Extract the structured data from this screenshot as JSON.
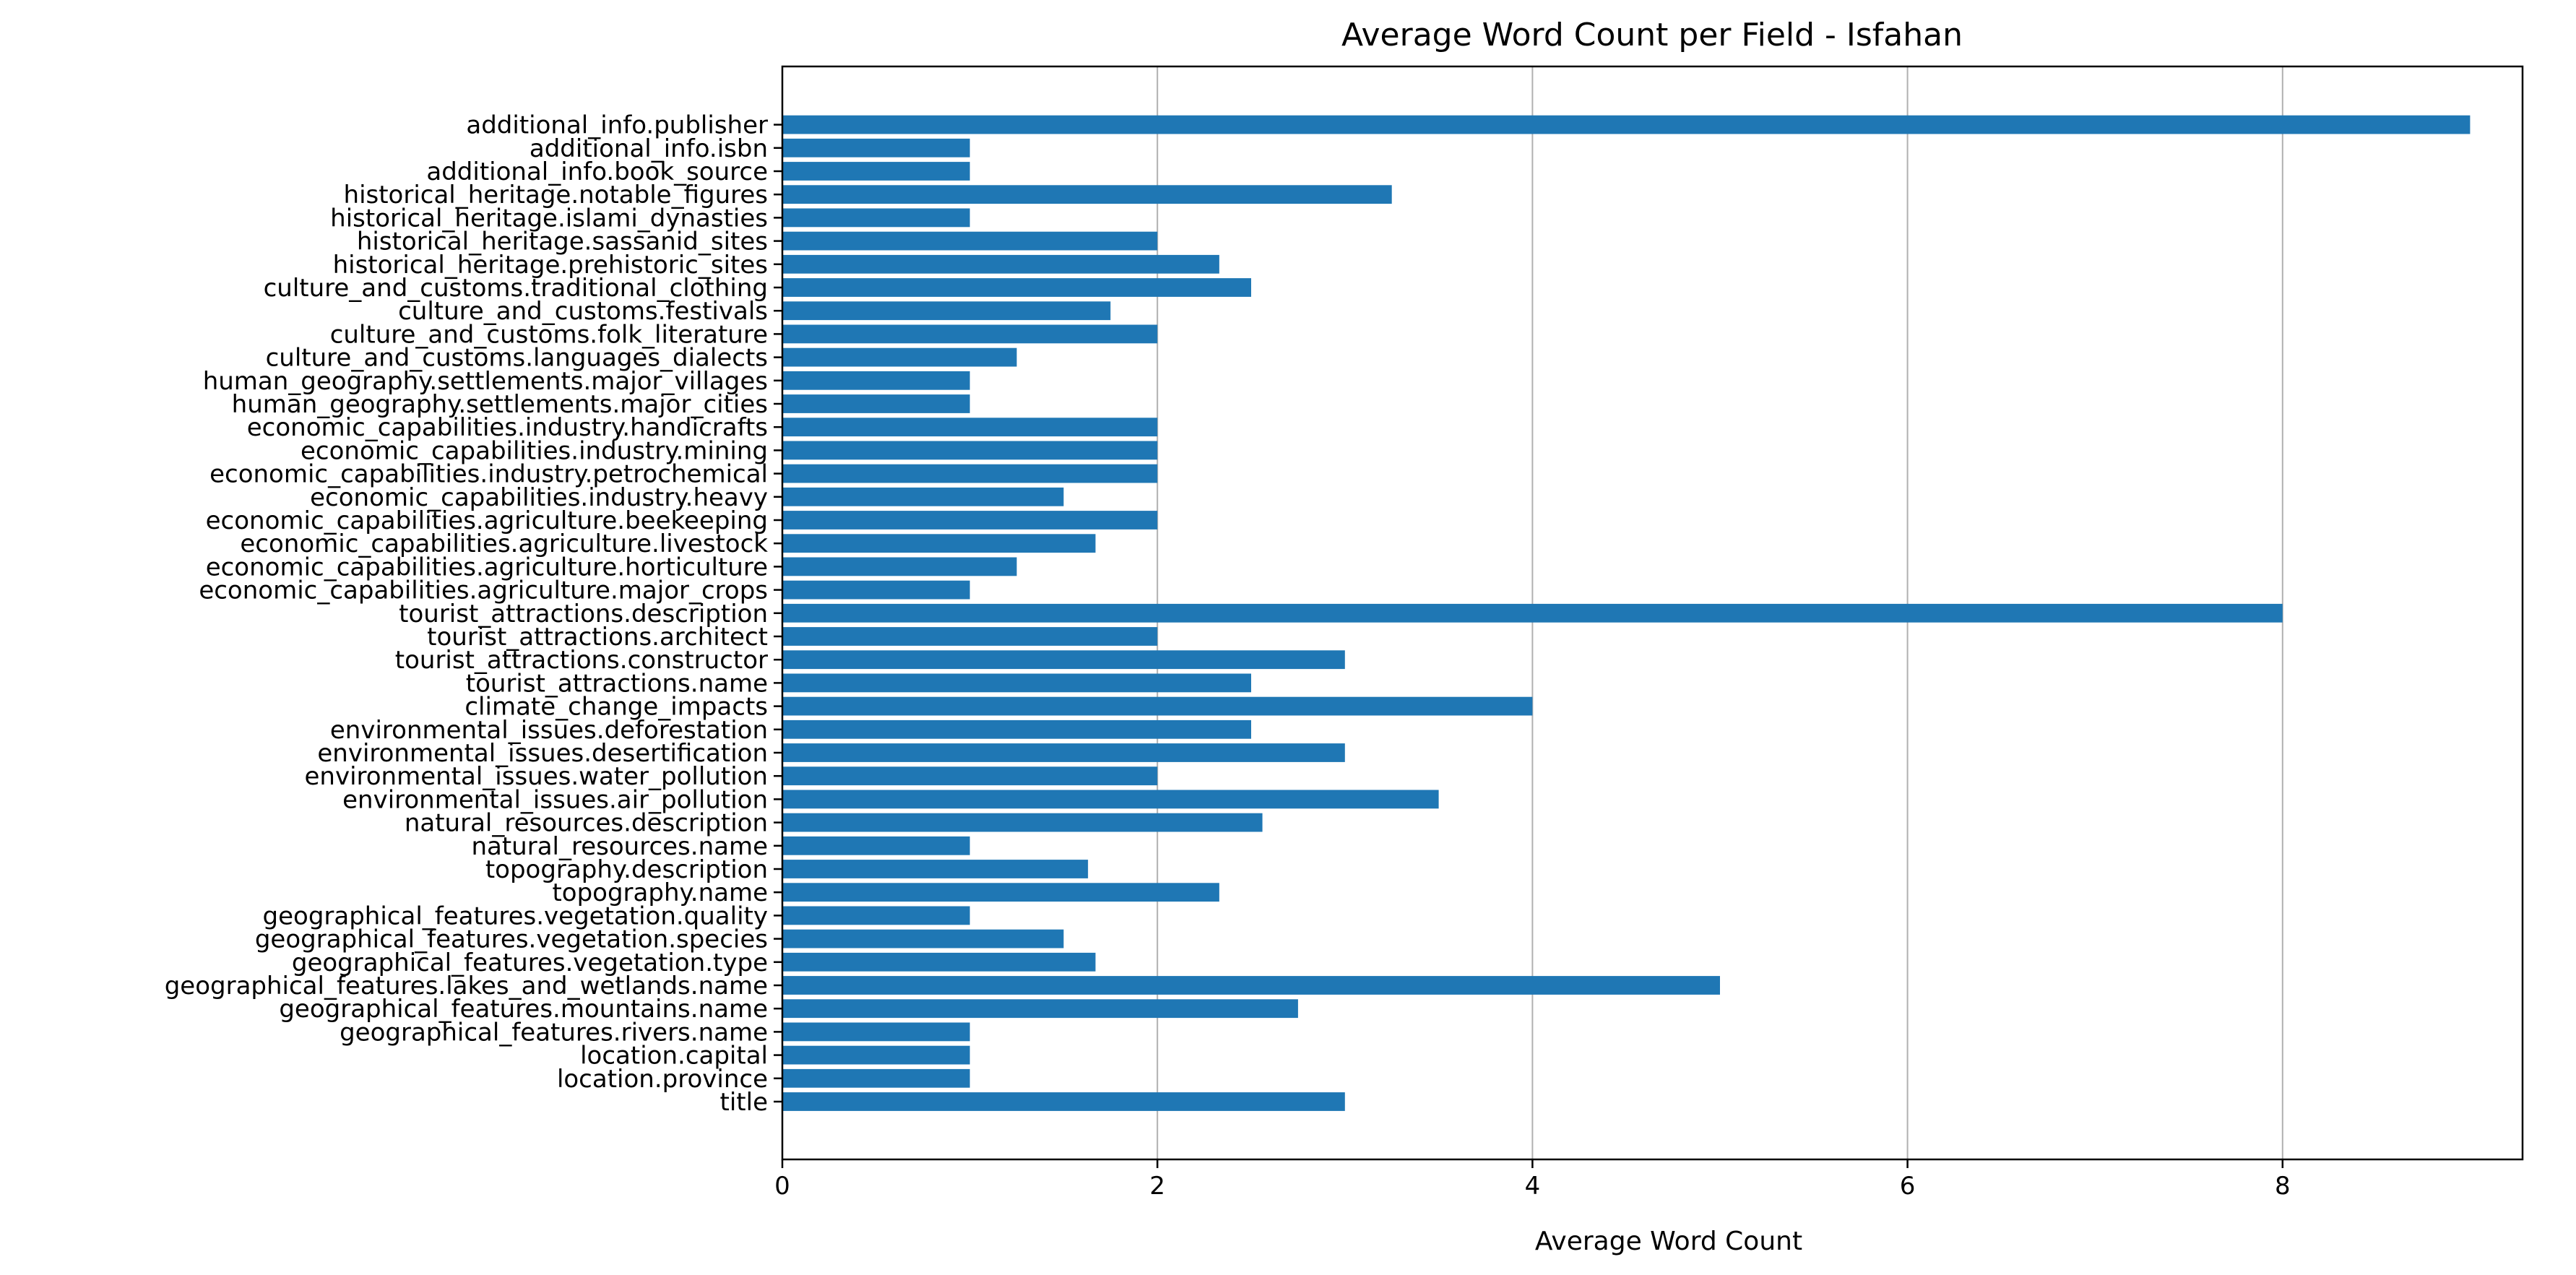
{
  "chart_data": {
    "type": "bar",
    "orientation": "horizontal",
    "title": "Average Word Count per Field - Isfahan",
    "xlabel": "Average Word Count",
    "ylabel": "",
    "xlim": [
      0,
      9.45
    ],
    "xticks": [
      0,
      2,
      4,
      6,
      8
    ],
    "grid": "x",
    "bar_color": "#1f77b4",
    "categories": [
      "title",
      "location.province",
      "location.capital",
      "geographical_features.rivers.name",
      "geographical_features.mountains.name",
      "geographical_features.lakes_and_wetlands.name",
      "geographical_features.vegetation.type",
      "geographical_features.vegetation.species",
      "geographical_features.vegetation.quality",
      "topography.name",
      "topography.description",
      "natural_resources.name",
      "natural_resources.description",
      "environmental_issues.air_pollution",
      "environmental_issues.water_pollution",
      "environmental_issues.desertification",
      "environmental_issues.deforestation",
      "climate_change_impacts",
      "tourist_attractions.name",
      "tourist_attractions.constructor",
      "tourist_attractions.architect",
      "tourist_attractions.description",
      "economic_capabilities.agriculture.major_crops",
      "economic_capabilities.agriculture.horticulture",
      "economic_capabilities.agriculture.livestock",
      "economic_capabilities.agriculture.beekeeping",
      "economic_capabilities.industry.heavy",
      "economic_capabilities.industry.petrochemical",
      "economic_capabilities.industry.mining",
      "economic_capabilities.industry.handicrafts",
      "human_geography.settlements.major_cities",
      "human_geography.settlements.major_villages",
      "culture_and_customs.languages_dialects",
      "culture_and_customs.folk_literature",
      "culture_and_customs.festivals",
      "culture_and_customs.traditional_clothing",
      "historical_heritage.prehistoric_sites",
      "historical_heritage.sassanid_sites",
      "historical_heritage.islami_dynasties",
      "historical_heritage.notable_figures",
      "additional_info.book_source",
      "additional_info.isbn",
      "additional_info.publisher"
    ],
    "values": [
      3,
      1,
      1,
      1,
      2.75,
      5,
      1.67,
      1.5,
      1,
      2.33,
      1.63,
      1,
      2.56,
      3.5,
      2,
      3,
      2.5,
      4,
      2.5,
      3,
      2,
      8,
      1,
      1.25,
      1.67,
      2,
      1.5,
      2,
      2,
      2,
      1,
      1,
      1.25,
      2,
      1.75,
      2.5,
      2.33,
      2,
      1,
      3.25,
      1,
      1,
      9
    ]
  }
}
